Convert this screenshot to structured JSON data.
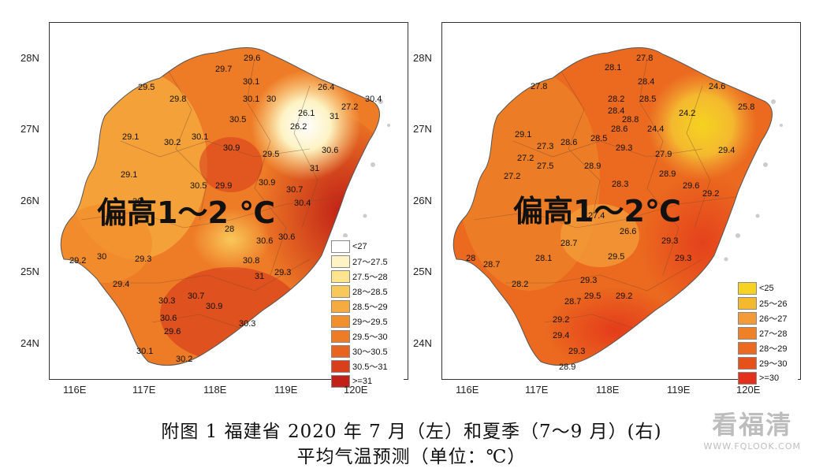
{
  "caption": {
    "line1": "附图 1   福建省 2020 年 7 月（左）和夏季（7～9 月）(右)",
    "line2": "平均气温预测（单位：℃）"
  },
  "watermark": {
    "main": "看福清",
    "sub": "WWW.FQLOOK.COM"
  },
  "axes": {
    "lat_ticks": [
      "28N",
      "27N",
      "26N",
      "25N",
      "24N"
    ],
    "lon_ticks": [
      "116E",
      "117E",
      "118E",
      "119E",
      "120E"
    ]
  },
  "left_map": {
    "overlay_text": "偏高1～2 ℃",
    "legend": [
      {
        "label": "<27",
        "color": "#ffffff"
      },
      {
        "label": "27～27.5",
        "color": "#fdf3c4"
      },
      {
        "label": "27.5～28",
        "color": "#fde48f"
      },
      {
        "label": "28～28.5",
        "color": "#f9c85a"
      },
      {
        "label": "28.5～29",
        "color": "#f5ab3f"
      },
      {
        "label": "29～29.5",
        "color": "#f2902e"
      },
      {
        "label": "29.5～30",
        "color": "#ee7b26"
      },
      {
        "label": "30～30.5",
        "color": "#e8641f"
      },
      {
        "label": "30.5～31",
        "color": "#d8401b"
      },
      {
        "label": ">=31",
        "color": "#c02016"
      }
    ],
    "values": [
      "29.6",
      "29.7",
      "29.5",
      "29.8",
      "30.1",
      "30.1",
      "30",
      "26.4",
      "27.2",
      "30.4",
      "30.5",
      "26.1",
      "31",
      "29.1",
      "30.1",
      "30.2",
      "30.9",
      "26.2",
      "29.5",
      "30.6",
      "29.1",
      "31",
      "29.9",
      "30.9",
      "30",
      "30.5",
      "30.7",
      "30.4",
      "28",
      "30.6",
      "30.6",
      "29.2",
      "30",
      "29.3",
      "30.8",
      "31",
      "29.3",
      "29.4",
      "30.7",
      "30.3",
      "30.9",
      "30.6",
      "30.3",
      "30.1",
      "30.2",
      "29.6"
    ]
  },
  "right_map": {
    "overlay_text": "偏高1～2℃",
    "legend": [
      {
        "label": "<25",
        "color": "#f5d320"
      },
      {
        "label": "25～26",
        "color": "#f4b92f"
      },
      {
        "label": "26～27",
        "color": "#f29b38"
      },
      {
        "label": "27～28",
        "color": "#ee8128"
      },
      {
        "label": "28～29",
        "color": "#eb6a1f"
      },
      {
        "label": "29～30",
        "color": "#e65019"
      },
      {
        "label": ">=30",
        "color": "#e2301a"
      }
    ],
    "values": [
      "27.8",
      "28.1",
      "27.8",
      "28.4",
      "28.5",
      "24.6",
      "28.2",
      "28.4",
      "25.8",
      "28.6",
      "28.8",
      "24.2",
      "29.1",
      "27.3",
      "28.5",
      "24.4",
      "27.2",
      "28.6",
      "29.3",
      "29.4",
      "27.5",
      "27.9",
      "28.9",
      "28.9",
      "28.3",
      "29.6",
      "27.2",
      "27.4",
      "29.2",
      "26.6",
      "29.3",
      "28.7",
      "29.3",
      "28",
      "28.1",
      "29.5",
      "28.7",
      "29.3",
      "28.2",
      "29.5",
      "28.7",
      "29.2",
      "29.2",
      "29.4",
      "29.3",
      "28.9"
    ]
  }
}
